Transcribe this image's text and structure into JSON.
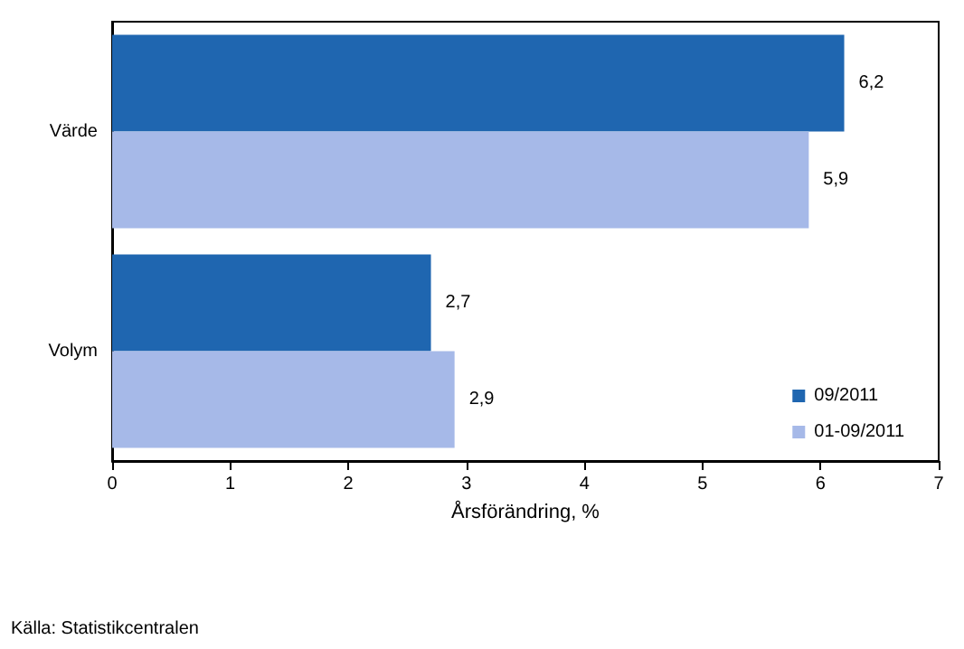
{
  "chart_data": {
    "type": "bar",
    "orientation": "horizontal",
    "categories": [
      "Värde",
      "Volym"
    ],
    "series": [
      {
        "name": "09/2011",
        "color": "#1f66b0",
        "values": [
          6.2,
          2.7
        ],
        "value_labels": [
          "6,2",
          "2,7"
        ]
      },
      {
        "name": "01-09/2011",
        "color": "#a6b9e8",
        "values": [
          5.9,
          2.9
        ],
        "value_labels": [
          "5,9",
          "2,9"
        ]
      }
    ],
    "xlim": [
      0,
      7
    ],
    "xticks": [
      0,
      1,
      2,
      3,
      4,
      5,
      6,
      7
    ],
    "xlabel": "Årsförändring, %",
    "grid": false,
    "legend": "bottom right",
    "annotations": [
      "Källa: Statistikcentralen"
    ]
  }
}
